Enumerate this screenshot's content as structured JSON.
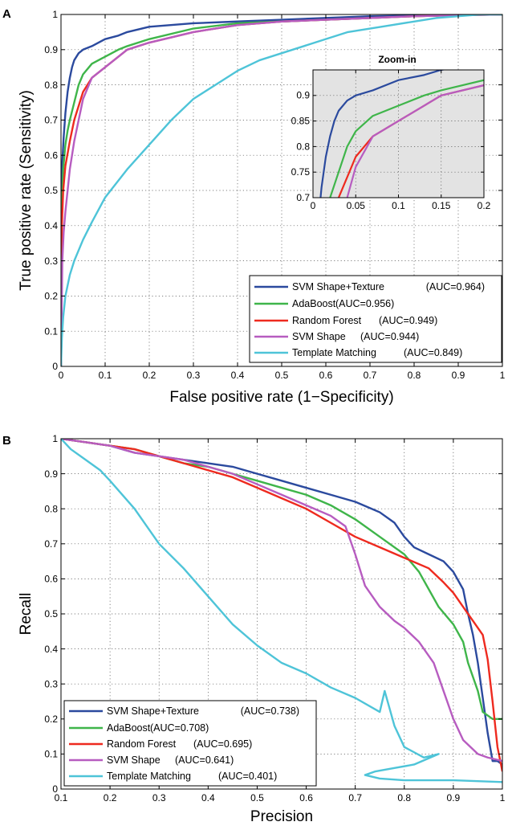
{
  "colors": {
    "svm_shape_texture": "#2b4a9e",
    "adaboost": "#3fb54a",
    "random_forest": "#ee2a1f",
    "svm_shape": "#b75cc0",
    "template_matching": "#4ec4d8",
    "zoom_background": "#e3e3e3",
    "grid": "#555555"
  },
  "chart_data": [
    {
      "panel": "A",
      "type": "line",
      "xlabel": "False positive rate (1−Specificity)",
      "ylabel": "True positive rate (Sensitivity)",
      "xlim": [
        0,
        1
      ],
      "ylim": [
        0,
        1
      ],
      "xticks": [
        "0",
        "0.1",
        "0.2",
        "0.3",
        "0.4",
        "0.5",
        "0.6",
        "0.7",
        "0.8",
        "0.9",
        "1"
      ],
      "yticks": [
        "0",
        "0.1",
        "0.2",
        "0.3",
        "0.4",
        "0.5",
        "0.6",
        "0.7",
        "0.8",
        "0.9",
        "1"
      ],
      "grid": true,
      "legend_position": "bottom-right",
      "series": [
        {
          "name": "SVM Shape+Texture",
          "auc_label": "(AUC=0.964)",
          "x": [
            0,
            0.001,
            0.003,
            0.006,
            0.01,
            0.015,
            0.02,
            0.025,
            0.03,
            0.04,
            0.05,
            0.07,
            0.1,
            0.13,
            0.15,
            0.2,
            0.3,
            0.4,
            0.5,
            0.6,
            0.7,
            0.8,
            0.9,
            1
          ],
          "y": [
            0,
            0.45,
            0.58,
            0.65,
            0.72,
            0.78,
            0.82,
            0.85,
            0.87,
            0.89,
            0.9,
            0.91,
            0.93,
            0.94,
            0.95,
            0.965,
            0.975,
            0.98,
            0.985,
            0.99,
            0.995,
            0.997,
            0.999,
            1
          ]
        },
        {
          "name": "AdaBoost",
          "auc_label": "(AUC=0.956)",
          "x": [
            0,
            0.002,
            0.005,
            0.01,
            0.015,
            0.02,
            0.03,
            0.04,
            0.05,
            0.07,
            0.1,
            0.13,
            0.15,
            0.2,
            0.3,
            0.4,
            0.5,
            0.6,
            0.7,
            0.8,
            0.9,
            1
          ],
          "y": [
            0,
            0.45,
            0.56,
            0.63,
            0.67,
            0.7,
            0.75,
            0.8,
            0.83,
            0.86,
            0.88,
            0.9,
            0.91,
            0.93,
            0.96,
            0.975,
            0.98,
            0.985,
            0.99,
            0.995,
            0.998,
            1
          ]
        },
        {
          "name": "Random Forest",
          "auc_label": "(AUC=0.949)",
          "x": [
            0,
            0.002,
            0.005,
            0.01,
            0.02,
            0.03,
            0.035,
            0.05,
            0.07,
            0.1,
            0.13,
            0.15,
            0.2,
            0.3,
            0.4,
            0.5,
            0.6,
            0.7,
            0.8,
            0.9,
            1
          ],
          "y": [
            0,
            0.4,
            0.5,
            0.57,
            0.64,
            0.7,
            0.72,
            0.78,
            0.82,
            0.85,
            0.88,
            0.9,
            0.92,
            0.95,
            0.97,
            0.98,
            0.985,
            0.99,
            0.995,
            0.998,
            1
          ]
        },
        {
          "name": "SVM Shape",
          "auc_label": "(AUC=0.944)",
          "x": [
            0,
            0.003,
            0.006,
            0.01,
            0.015,
            0.02,
            0.03,
            0.04,
            0.05,
            0.07,
            0.1,
            0.13,
            0.15,
            0.2,
            0.3,
            0.4,
            0.5,
            0.6,
            0.7,
            0.8,
            0.9,
            1
          ],
          "y": [
            0,
            0.3,
            0.38,
            0.44,
            0.5,
            0.56,
            0.64,
            0.7,
            0.76,
            0.82,
            0.85,
            0.88,
            0.9,
            0.92,
            0.95,
            0.97,
            0.98,
            0.985,
            0.99,
            0.995,
            0.998,
            1
          ]
        },
        {
          "name": "Template Matching",
          "auc_label": "(AUC=0.849)",
          "x": [
            0,
            0.002,
            0.005,
            0.01,
            0.02,
            0.03,
            0.05,
            0.07,
            0.1,
            0.15,
            0.2,
            0.25,
            0.3,
            0.35,
            0.4,
            0.45,
            0.5,
            0.55,
            0.6,
            0.65,
            0.7,
            0.75,
            0.8,
            0.85,
            0.9,
            0.95,
            1
          ],
          "y": [
            0,
            0.08,
            0.14,
            0.2,
            0.26,
            0.3,
            0.36,
            0.41,
            0.48,
            0.56,
            0.63,
            0.7,
            0.76,
            0.8,
            0.84,
            0.87,
            0.89,
            0.91,
            0.93,
            0.95,
            0.96,
            0.97,
            0.98,
            0.99,
            0.995,
            1,
            1
          ]
        }
      ],
      "inset": {
        "title": "Zoom-in",
        "xlim": [
          0,
          0.2
        ],
        "ylim": [
          0.7,
          0.95
        ],
        "xticks": [
          "0",
          "0.05",
          "0.1",
          "0.15",
          "0.2"
        ],
        "yticks": [
          "0.7",
          "0.75",
          "0.8",
          "0.85",
          "0.9"
        ]
      }
    },
    {
      "panel": "B",
      "type": "line",
      "xlabel": "Precision",
      "ylabel": "Recall",
      "xlim": [
        0.1,
        1
      ],
      "ylim": [
        0,
        1
      ],
      "xticks": [
        "0.1",
        "0.2",
        "0.3",
        "0.4",
        "0.5",
        "0.6",
        "0.7",
        "0.8",
        "0.9",
        "1"
      ],
      "yticks": [
        "0",
        "0.1",
        "0.2",
        "0.3",
        "0.4",
        "0.5",
        "0.6",
        "0.7",
        "0.8",
        "0.9",
        "1"
      ],
      "grid": true,
      "legend_position": "bottom-left",
      "series": [
        {
          "name": "SVM Shape+Texture",
          "auc_label": "(AUC=0.738)",
          "x": [
            0.1,
            0.15,
            0.2,
            0.25,
            0.3,
            0.35,
            0.4,
            0.45,
            0.5,
            0.55,
            0.6,
            0.65,
            0.7,
            0.75,
            0.78,
            0.8,
            0.82,
            0.85,
            0.88,
            0.9,
            0.92,
            0.93,
            0.94,
            0.95,
            0.96,
            0.97,
            0.98,
            0.99,
            1
          ],
          "y": [
            1,
            0.99,
            0.98,
            0.96,
            0.95,
            0.94,
            0.93,
            0.92,
            0.9,
            0.88,
            0.86,
            0.84,
            0.82,
            0.79,
            0.76,
            0.72,
            0.69,
            0.67,
            0.65,
            0.62,
            0.57,
            0.5,
            0.44,
            0.36,
            0.26,
            0.16,
            0.08,
            0.08,
            0.07
          ]
        },
        {
          "name": "AdaBoost",
          "auc_label": "(AUC=0.708)",
          "x": [
            0.1,
            0.15,
            0.2,
            0.25,
            0.3,
            0.35,
            0.4,
            0.45,
            0.5,
            0.55,
            0.6,
            0.65,
            0.7,
            0.75,
            0.8,
            0.83,
            0.85,
            0.87,
            0.9,
            0.92,
            0.93,
            0.95,
            0.96,
            0.98,
            1
          ],
          "y": [
            1,
            0.99,
            0.98,
            0.97,
            0.95,
            0.93,
            0.92,
            0.9,
            0.88,
            0.86,
            0.84,
            0.81,
            0.77,
            0.72,
            0.67,
            0.62,
            0.57,
            0.52,
            0.47,
            0.42,
            0.36,
            0.28,
            0.22,
            0.2,
            0.2
          ]
        },
        {
          "name": "Random Forest",
          "auc_label": "(AUC=0.695)",
          "x": [
            0.1,
            0.15,
            0.2,
            0.25,
            0.3,
            0.35,
            0.4,
            0.45,
            0.5,
            0.55,
            0.6,
            0.65,
            0.7,
            0.75,
            0.8,
            0.85,
            0.88,
            0.9,
            0.92,
            0.94,
            0.96,
            0.97,
            0.98,
            0.99,
            1
          ],
          "y": [
            1,
            0.99,
            0.98,
            0.97,
            0.95,
            0.93,
            0.91,
            0.89,
            0.86,
            0.83,
            0.8,
            0.76,
            0.72,
            0.69,
            0.66,
            0.63,
            0.59,
            0.56,
            0.52,
            0.48,
            0.44,
            0.37,
            0.25,
            0.12,
            0.05
          ]
        },
        {
          "name": "SVM Shape",
          "auc_label": "(AUC=0.641)",
          "x": [
            0.1,
            0.15,
            0.2,
            0.25,
            0.3,
            0.35,
            0.4,
            0.45,
            0.5,
            0.55,
            0.6,
            0.65,
            0.68,
            0.7,
            0.72,
            0.75,
            0.78,
            0.8,
            0.83,
            0.86,
            0.88,
            0.9,
            0.92,
            0.95,
            0.97,
            1
          ],
          "y": [
            1,
            0.99,
            0.98,
            0.96,
            0.95,
            0.94,
            0.92,
            0.9,
            0.87,
            0.84,
            0.81,
            0.78,
            0.75,
            0.67,
            0.58,
            0.52,
            0.48,
            0.46,
            0.42,
            0.36,
            0.28,
            0.2,
            0.14,
            0.1,
            0.09,
            0.08
          ]
        },
        {
          "name": "Template Matching",
          "auc_label": "(AUC=0.401)",
          "x": [
            0.1,
            0.12,
            0.15,
            0.18,
            0.2,
            0.25,
            0.3,
            0.35,
            0.4,
            0.45,
            0.5,
            0.55,
            0.6,
            0.65,
            0.7,
            0.75,
            0.76,
            0.78,
            0.8,
            0.84,
            0.87,
            0.82,
            0.78,
            0.74,
            0.72,
            0.75,
            0.8,
            0.9,
            1
          ],
          "y": [
            1,
            0.97,
            0.94,
            0.91,
            0.88,
            0.8,
            0.7,
            0.63,
            0.55,
            0.47,
            0.41,
            0.36,
            0.33,
            0.29,
            0.26,
            0.22,
            0.28,
            0.18,
            0.12,
            0.09,
            0.1,
            0.07,
            0.06,
            0.05,
            0.04,
            0.03,
            0.025,
            0.025,
            0.02
          ]
        }
      ]
    }
  ]
}
